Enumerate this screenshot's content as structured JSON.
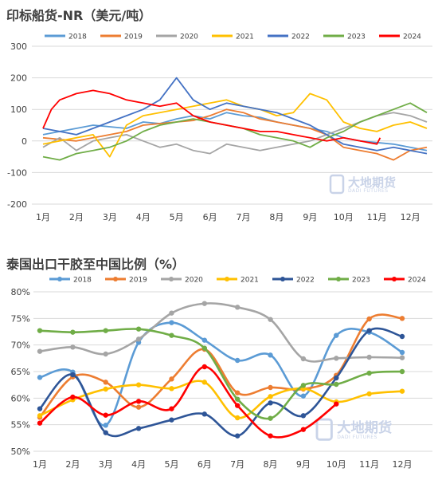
{
  "charts": [
    {
      "title": "印标船货-NR（美元/吨）",
      "watermark": {
        "logo": "大地期货",
        "sub": "DADI FUTURES"
      },
      "chart_data": {
        "type": "line",
        "x_labels": [
          "1月",
          "2月",
          "3月",
          "4月",
          "5月",
          "6月",
          "7月",
          "8月",
          "9月",
          "10月",
          "11月",
          "12月"
        ],
        "ylim": [
          -200,
          300
        ],
        "yticks": [
          -200,
          -100,
          0,
          100,
          200,
          300
        ],
        "grid": true,
        "legend_position": "top",
        "series": [
          {
            "name": "2018",
            "color": "#5b9bd5",
            "x": [
              1,
              1.5,
              2,
              2.5,
              3,
              3.5,
              4,
              4.5,
              5,
              5.5,
              6,
              6.5,
              7,
              7.5,
              8,
              8.5,
              9,
              9.5,
              10,
              10.5,
              11,
              11.5,
              12,
              12.5
            ],
            "values": [
              20,
              30,
              40,
              50,
              45,
              40,
              60,
              55,
              70,
              80,
              70,
              90,
              80,
              75,
              60,
              50,
              40,
              30,
              10,
              0,
              -5,
              -10,
              -20,
              -30
            ]
          },
          {
            "name": "2019",
            "color": "#ed7d31",
            "x": [
              1,
              1.5,
              2,
              2.5,
              3,
              3.5,
              4,
              4.5,
              5,
              5.5,
              6,
              6.5,
              7,
              7.5,
              8,
              8.5,
              9,
              9.5,
              10,
              10.5,
              11,
              11.5,
              12,
              12.5
            ],
            "values": [
              10,
              5,
              0,
              10,
              20,
              30,
              50,
              55,
              60,
              65,
              80,
              100,
              90,
              70,
              60,
              50,
              40,
              20,
              -20,
              -30,
              -40,
              -60,
              -30,
              -20
            ]
          },
          {
            "name": "2020",
            "color": "#a5a5a5",
            "x": [
              1,
              1.5,
              2,
              2.5,
              3,
              3.5,
              4,
              4.5,
              5,
              5.5,
              6,
              6.5,
              7,
              7.5,
              8,
              8.5,
              9,
              9.5,
              10,
              10.5,
              11,
              11.5,
              12,
              12.5
            ],
            "values": [
              -20,
              10,
              -30,
              0,
              10,
              20,
              0,
              -20,
              -10,
              -30,
              -40,
              -10,
              -20,
              -30,
              -20,
              -10,
              0,
              20,
              40,
              60,
              80,
              90,
              80,
              60
            ]
          },
          {
            "name": "2021",
            "color": "#ffc000",
            "x": [
              1,
              1.5,
              2,
              2.5,
              3,
              3.5,
              4,
              4.5,
              5,
              5.5,
              6,
              6.5,
              7,
              7.5,
              8,
              8.5,
              9,
              9.5,
              10,
              10.5,
              11,
              11.5,
              12,
              12.5
            ],
            "values": [
              -10,
              0,
              10,
              20,
              -50,
              50,
              80,
              90,
              100,
              110,
              120,
              130,
              110,
              100,
              80,
              90,
              150,
              130,
              60,
              40,
              30,
              50,
              60,
              40
            ]
          },
          {
            "name": "2022",
            "color": "#4472c4",
            "x": [
              1,
              1.5,
              2,
              2.5,
              3,
              3.5,
              4,
              4.5,
              5,
              5.5,
              6,
              6.5,
              7,
              7.5,
              8,
              8.5,
              9,
              9.5,
              10,
              10.5,
              11,
              11.5,
              12,
              12.5
            ],
            "values": [
              40,
              30,
              20,
              40,
              60,
              80,
              100,
              130,
              200,
              130,
              100,
              120,
              110,
              100,
              90,
              70,
              50,
              20,
              -10,
              -20,
              -30,
              -20,
              -30,
              -40
            ]
          },
          {
            "name": "2023",
            "color": "#70ad47",
            "x": [
              1,
              1.5,
              2,
              2.5,
              3,
              3.5,
              4,
              4.5,
              5,
              5.5,
              6,
              6.5,
              7,
              7.5,
              8,
              8.5,
              9,
              9.5,
              10,
              10.5,
              11,
              11.5,
              12,
              12.5
            ],
            "values": [
              -50,
              -60,
              -40,
              -30,
              -20,
              0,
              30,
              50,
              60,
              70,
              60,
              50,
              40,
              20,
              10,
              0,
              -20,
              10,
              30,
              60,
              80,
              100,
              120,
              90
            ]
          },
          {
            "name": "2024",
            "color": "#ff0000",
            "x": [
              1,
              1.25,
              1.5,
              2,
              2.5,
              3,
              3.5,
              4,
              4.5,
              5,
              5.5,
              6,
              6.5,
              7,
              7.5,
              8,
              8.5,
              9,
              9.5,
              10,
              10.5,
              11,
              11.1
            ],
            "values": [
              40,
              100,
              130,
              150,
              160,
              150,
              130,
              120,
              110,
              120,
              80,
              60,
              50,
              40,
              30,
              30,
              20,
              10,
              0,
              10,
              0,
              -10,
              10
            ]
          }
        ]
      }
    },
    {
      "title": "泰国出口干胶至中国比例（%）",
      "watermark": {
        "logo": "大地期货",
        "sub": "DADI FUTURES"
      },
      "chart_data": {
        "type": "line",
        "x_labels": [
          "1月",
          "2月",
          "3月",
          "4月",
          "5月",
          "6月",
          "7月",
          "8月",
          "9月",
          "10月",
          "11月",
          "12月"
        ],
        "ylim": [
          0.5,
          0.8
        ],
        "yticks": [
          "50%",
          "55%",
          "60%",
          "65%",
          "70%",
          "75%",
          "80%"
        ],
        "grid": true,
        "legend_position": "top",
        "series": [
          {
            "name": "2018",
            "color": "#5b9bd5",
            "values": [
              0.639,
              0.649,
              0.549,
              0.705,
              0.742,
              0.709,
              0.671,
              0.681,
              0.604,
              0.718,
              0.724,
              0.686
            ]
          },
          {
            "name": "2019",
            "color": "#ed7d31",
            "values": [
              0.564,
              0.64,
              0.63,
              0.583,
              0.636,
              0.692,
              0.61,
              0.62,
              0.617,
              0.643,
              0.749,
              0.75
            ]
          },
          {
            "name": "2020",
            "color": "#a5a5a5",
            "values": [
              0.688,
              0.696,
              0.683,
              0.711,
              0.76,
              0.778,
              0.771,
              0.748,
              0.674,
              0.675,
              0.677,
              0.676
            ]
          },
          {
            "name": "2021",
            "color": "#ffc000",
            "values": [
              0.567,
              0.597,
              0.617,
              0.625,
              0.618,
              0.63,
              0.563,
              0.603,
              0.618,
              0.593,
              0.608,
              0.613
            ]
          },
          {
            "name": "2022",
            "color": "#2e5597",
            "values": [
              0.58,
              0.644,
              0.535,
              0.543,
              0.559,
              0.57,
              0.529,
              0.591,
              0.567,
              0.638,
              0.727,
              0.716
            ]
          },
          {
            "name": "2023",
            "color": "#70ad47",
            "values": [
              0.727,
              0.724,
              0.727,
              0.73,
              0.718,
              0.694,
              0.598,
              0.562,
              0.624,
              0.626,
              0.647,
              0.65
            ]
          },
          {
            "name": "2024",
            "color": "#ff0000",
            "values": [
              0.553,
              0.602,
              0.568,
              0.594,
              0.58,
              0.659,
              0.586,
              0.529,
              0.541,
              0.589,
              null,
              null
            ]
          }
        ]
      }
    }
  ]
}
